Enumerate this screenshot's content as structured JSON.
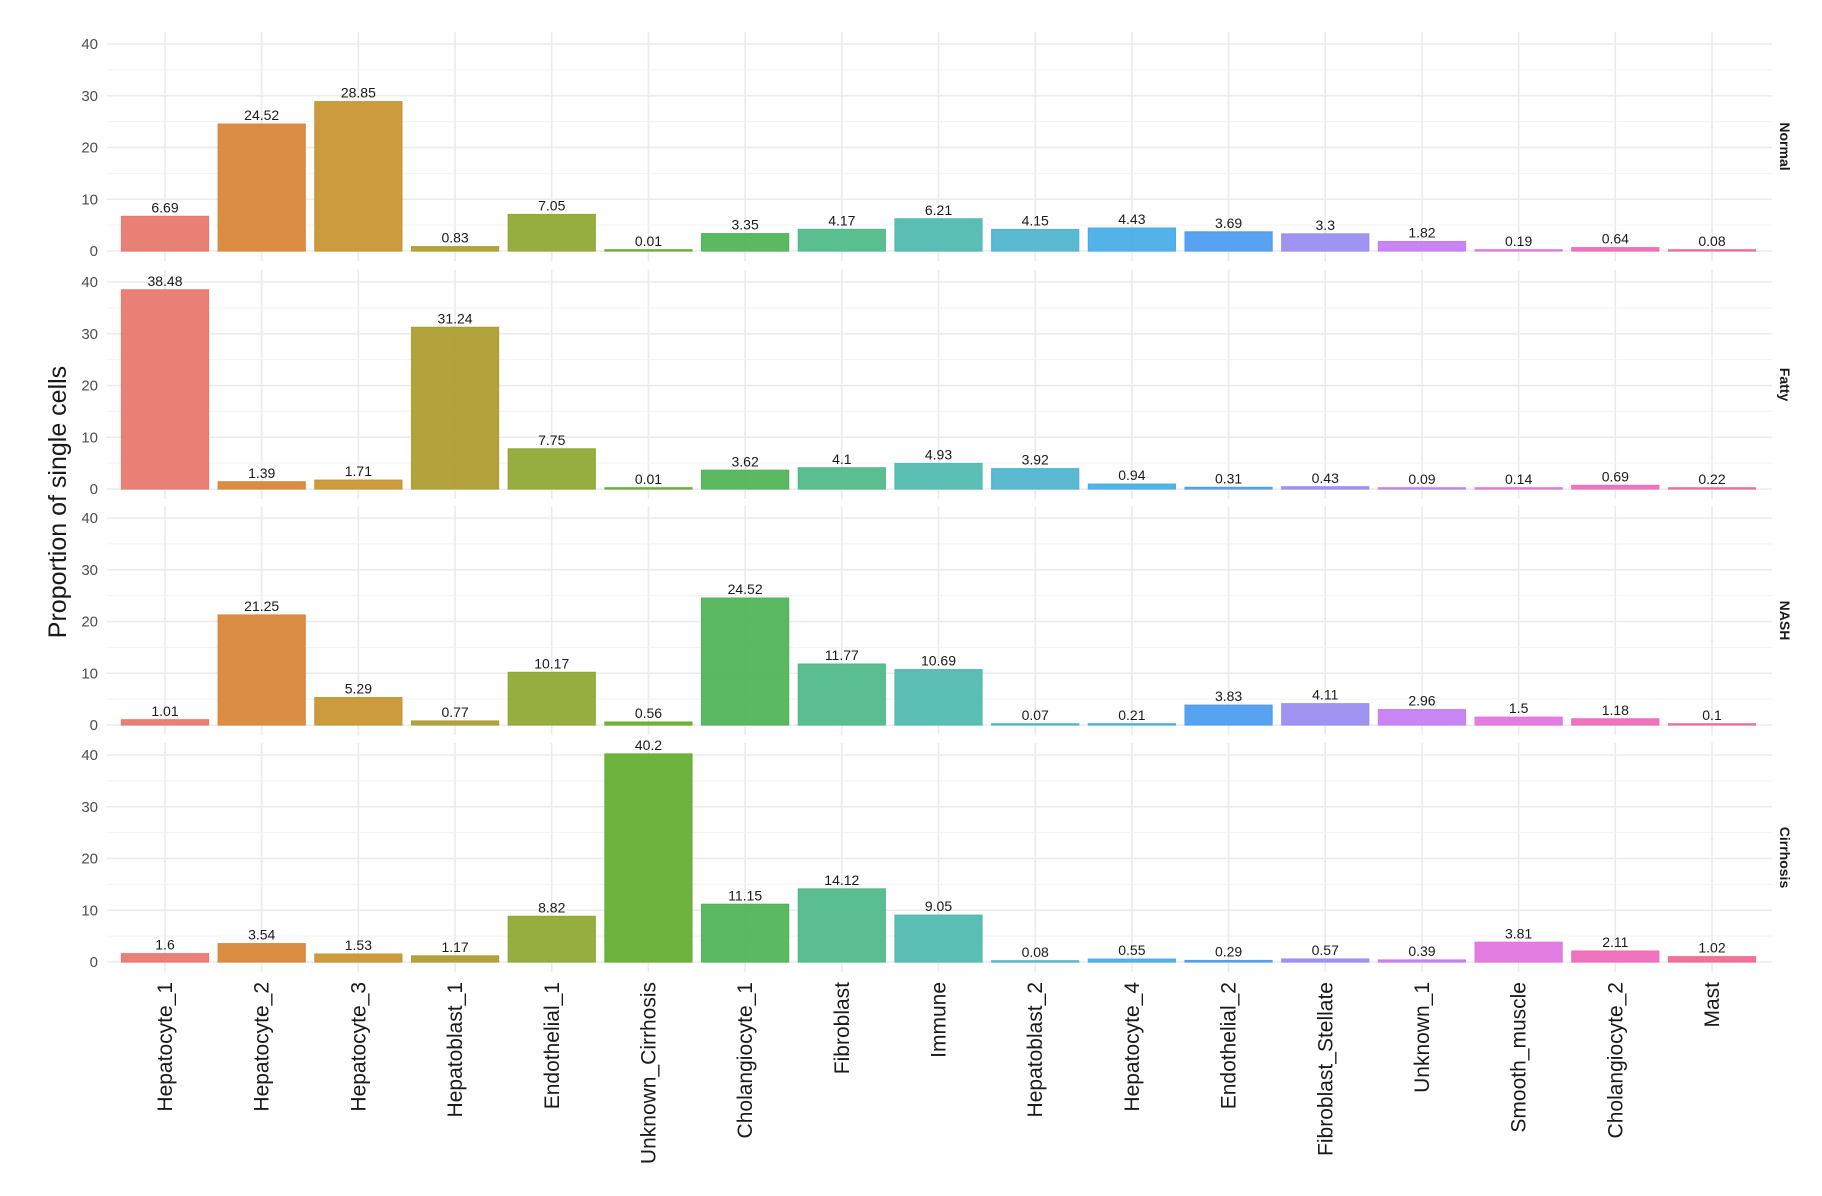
{
  "chart_data": {
    "type": "bar",
    "layout": "faceted-rows",
    "title": "",
    "xlabel": "",
    "ylabel": "Proportion of single cells",
    "ylim": [
      0,
      40
    ],
    "yticks": [
      "0",
      "10",
      "20",
      "30",
      "40"
    ],
    "grid": true,
    "legend": "none",
    "categories": [
      "Hepatocyte_1",
      "Hepatocyte_2",
      "Hepatocyte_3",
      "Hepatoblast_1",
      "Endothelial_1",
      "Unknown_Cirrhosis",
      "Cholangiocyte_1",
      "Fibroblast",
      "Immune",
      "Hepatoblast_2",
      "Hepatocyte_4",
      "Endothelial_2",
      "Fibroblast_Stellate",
      "Unknown_1",
      "Smooth_muscle",
      "Cholangiocyte_2",
      "Mast"
    ],
    "colors": [
      "#E8796E",
      "#D9873A",
      "#C89633",
      "#AF9E33",
      "#90A935",
      "#67AF35",
      "#52B55A",
      "#52BA8A",
      "#52BAB0",
      "#52B5D0",
      "#4AAEE6",
      "#4F9EF0",
      "#9B8EF2",
      "#C67EF2",
      "#E276E0",
      "#EE6DBA",
      "#EE6D94"
    ],
    "series": [
      {
        "name": "Normal",
        "values": [
          6.69,
          24.52,
          28.85,
          0.83,
          7.05,
          0.01,
          3.35,
          4.17,
          6.21,
          4.15,
          4.43,
          3.69,
          3.3,
          1.82,
          0.19,
          0.64,
          0.08
        ],
        "labels": [
          "6.69",
          "24.52",
          "28.85",
          "0.83",
          "7.05",
          "0.01",
          "3.35",
          "4.17",
          "6.21",
          "4.15",
          "4.43",
          "3.69",
          "3.3",
          "1.82",
          "0.19",
          "0.64",
          "0.08"
        ]
      },
      {
        "name": "Fatty",
        "values": [
          38.48,
          1.39,
          1.71,
          31.24,
          7.75,
          0.01,
          3.62,
          4.1,
          4.93,
          3.92,
          0.94,
          0.31,
          0.43,
          0.09,
          0.14,
          0.69,
          0.22
        ],
        "labels": [
          "38.48",
          "1.39",
          "1.71",
          "31.24",
          "7.75",
          "0.01",
          "3.62",
          "4.1",
          "4.93",
          "3.92",
          "0.94",
          "0.31",
          "0.43",
          "0.09",
          "0.14",
          "0.69",
          "0.22"
        ]
      },
      {
        "name": "NASH",
        "values": [
          1.01,
          21.25,
          5.29,
          0.77,
          10.17,
          0.56,
          24.52,
          11.77,
          10.69,
          0.07,
          0.21,
          3.83,
          4.11,
          2.96,
          1.5,
          1.18,
          0.1
        ],
        "labels": [
          "1.01",
          "21.25",
          "5.29",
          "0.77",
          "10.17",
          "0.56",
          "24.52",
          "11.77",
          "10.69",
          "0.07",
          "0.21",
          "3.83",
          "4.11",
          "2.96",
          "1.5",
          "1.18",
          "0.1"
        ]
      },
      {
        "name": "Cirrhosis",
        "values": [
          1.6,
          3.54,
          1.53,
          1.17,
          8.82,
          40.2,
          11.15,
          14.12,
          9.05,
          0.08,
          0.55,
          0.29,
          0.57,
          0.39,
          3.81,
          2.11,
          1.02
        ],
        "labels": [
          "1.6",
          "3.54",
          "1.53",
          "1.17",
          "8.82",
          "40.2",
          "11.15",
          "14.12",
          "9.05",
          "0.08",
          "0.55",
          "0.29",
          "0.57",
          "0.39",
          "3.81",
          "2.11",
          "1.02"
        ]
      }
    ]
  }
}
